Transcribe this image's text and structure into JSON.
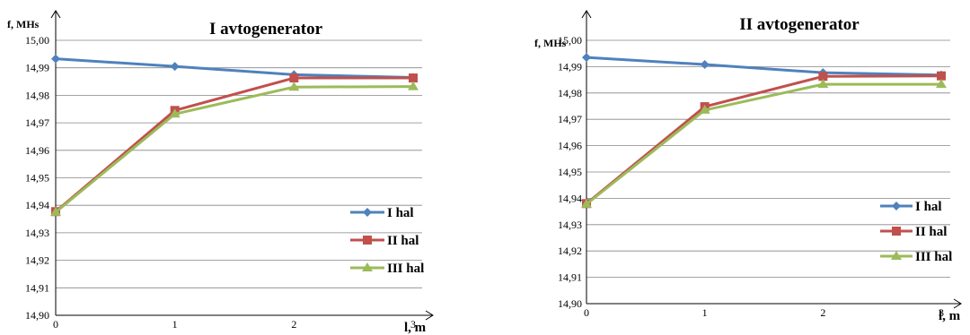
{
  "chart_data": [
    {
      "type": "line",
      "title": "I avtogenerator",
      "ylabel": "f, MHs",
      "xlabel": "l, m",
      "x": [
        0,
        1,
        2,
        3
      ],
      "ylim": [
        14.9,
        15.0
      ],
      "yticks": [
        "14,90",
        "14,91",
        "14,92",
        "14,93",
        "14,94",
        "14,95",
        "14,96",
        "14,97",
        "14,98",
        "14,99",
        "15,00"
      ],
      "xticks": [
        "0",
        "1",
        "2",
        "3"
      ],
      "grid": true,
      "legend_position": "right",
      "series": [
        {
          "name": "I hal",
          "color": "#4f81bd",
          "marker": "diamond",
          "values": [
            14.9933,
            14.9905,
            14.9875,
            14.9865
          ]
        },
        {
          "name": "II hal",
          "color": "#c0504d",
          "marker": "square",
          "values": [
            14.9377,
            14.9745,
            14.9863,
            14.9863
          ]
        },
        {
          "name": "III hal",
          "color": "#9bbb59",
          "marker": "triangle",
          "values": [
            14.9375,
            14.9732,
            14.983,
            14.9832
          ]
        }
      ]
    },
    {
      "type": "line",
      "title": "II avtogenerator",
      "ylabel": "f, MHs",
      "xlabel": "l, m",
      "x": [
        0,
        1,
        2,
        3
      ],
      "ylim": [
        14.9,
        15.0
      ],
      "yticks": [
        "14,90",
        "14,91",
        "14,92",
        "14,93",
        "14,94",
        "14,95",
        "14,96",
        "14,97",
        "14,98",
        "14,99",
        "15,00"
      ],
      "xticks": [
        "0",
        "1",
        "2",
        "3"
      ],
      "grid": true,
      "legend_position": "right",
      "series": [
        {
          "name": "I hal",
          "color": "#4f81bd",
          "marker": "diamond",
          "values": [
            14.9935,
            14.9908,
            14.9877,
            14.9868
          ]
        },
        {
          "name": "II hal",
          "color": "#c0504d",
          "marker": "square",
          "values": [
            14.938,
            14.9748,
            14.9863,
            14.9865
          ]
        },
        {
          "name": "III hal",
          "color": "#9bbb59",
          "marker": "triangle",
          "values": [
            14.9378,
            14.9735,
            14.9833,
            14.9833
          ]
        }
      ]
    }
  ]
}
